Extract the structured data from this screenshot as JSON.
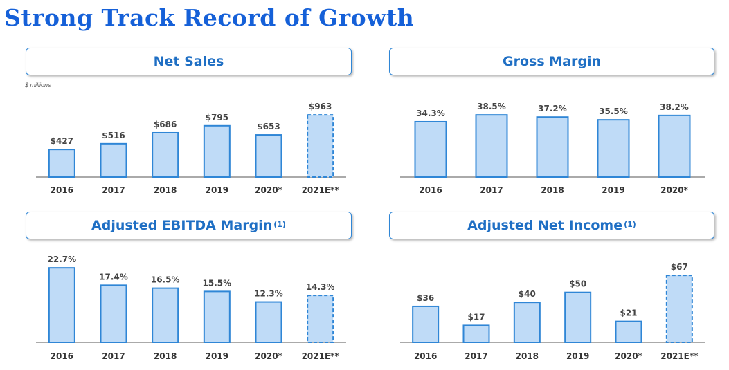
{
  "title": "Strong Track Record of Growth",
  "colors": {
    "title": "#1560d8",
    "header_border": "#2f86d6",
    "header_text": "#1f6fc4",
    "bar_fill": "#bfdbf7",
    "bar_stroke": "#2f86d6"
  },
  "panels": [
    {
      "title": "Net Sales",
      "superscript": "",
      "note": "$ millions"
    },
    {
      "title": "Gross Margin",
      "superscript": "",
      "note": ""
    },
    {
      "title": "Adjusted EBITDA Margin",
      "superscript": "(1)",
      "note": ""
    },
    {
      "title": "Adjusted Net Income",
      "superscript": "(1)",
      "note": ""
    }
  ],
  "chart_data": [
    {
      "type": "bar",
      "title": "Net Sales",
      "unit_note": "$ millions",
      "categories": [
        "2016",
        "2017",
        "2018",
        "2019",
        "2020*",
        "2021E**"
      ],
      "values": [
        427,
        516,
        686,
        795,
        653,
        963
      ],
      "labels": [
        "$427",
        "$516",
        "$686",
        "$795",
        "$653",
        "$963"
      ],
      "estimate": [
        false,
        false,
        false,
        false,
        false,
        true
      ],
      "xlabel": "",
      "ylabel": "",
      "ylim": [
        0,
        1050
      ],
      "grid": false
    },
    {
      "type": "bar",
      "title": "Gross Margin",
      "categories": [
        "2016",
        "2017",
        "2018",
        "2019",
        "2020*"
      ],
      "values": [
        34.3,
        38.5,
        37.2,
        35.5,
        38.2
      ],
      "labels": [
        "34.3%",
        "38.5%",
        "37.2%",
        "35.5%",
        "38.2%"
      ],
      "estimate": [
        false,
        false,
        false,
        false,
        false
      ],
      "xlabel": "",
      "ylabel": "",
      "ylim": [
        0,
        45
      ],
      "grid": false
    },
    {
      "type": "bar",
      "title": "Adjusted EBITDA Margin(1)",
      "categories": [
        "2016",
        "2017",
        "2018",
        "2019",
        "2020*",
        "2021E**"
      ],
      "values": [
        22.7,
        17.4,
        16.5,
        15.5,
        12.3,
        14.3
      ],
      "labels": [
        "22.7%",
        "17.4%",
        "16.5%",
        "15.5%",
        "12.3%",
        "14.3%"
      ],
      "estimate": [
        false,
        false,
        false,
        false,
        false,
        true
      ],
      "xlabel": "",
      "ylabel": "",
      "ylim": [
        0,
        24
      ],
      "grid": false
    },
    {
      "type": "bar",
      "title": "Adjusted Net Income(1)",
      "categories": [
        "2016",
        "2017",
        "2018",
        "2019",
        "2020*",
        "2021E**"
      ],
      "values": [
        36,
        17,
        40,
        50,
        21,
        67
      ],
      "labels": [
        "$36",
        "$17",
        "$40",
        "$50",
        "$21",
        "$67"
      ],
      "estimate": [
        false,
        false,
        false,
        false,
        false,
        true
      ],
      "xlabel": "",
      "ylabel": "",
      "ylim": [
        0,
        74
      ],
      "grid": false
    }
  ]
}
